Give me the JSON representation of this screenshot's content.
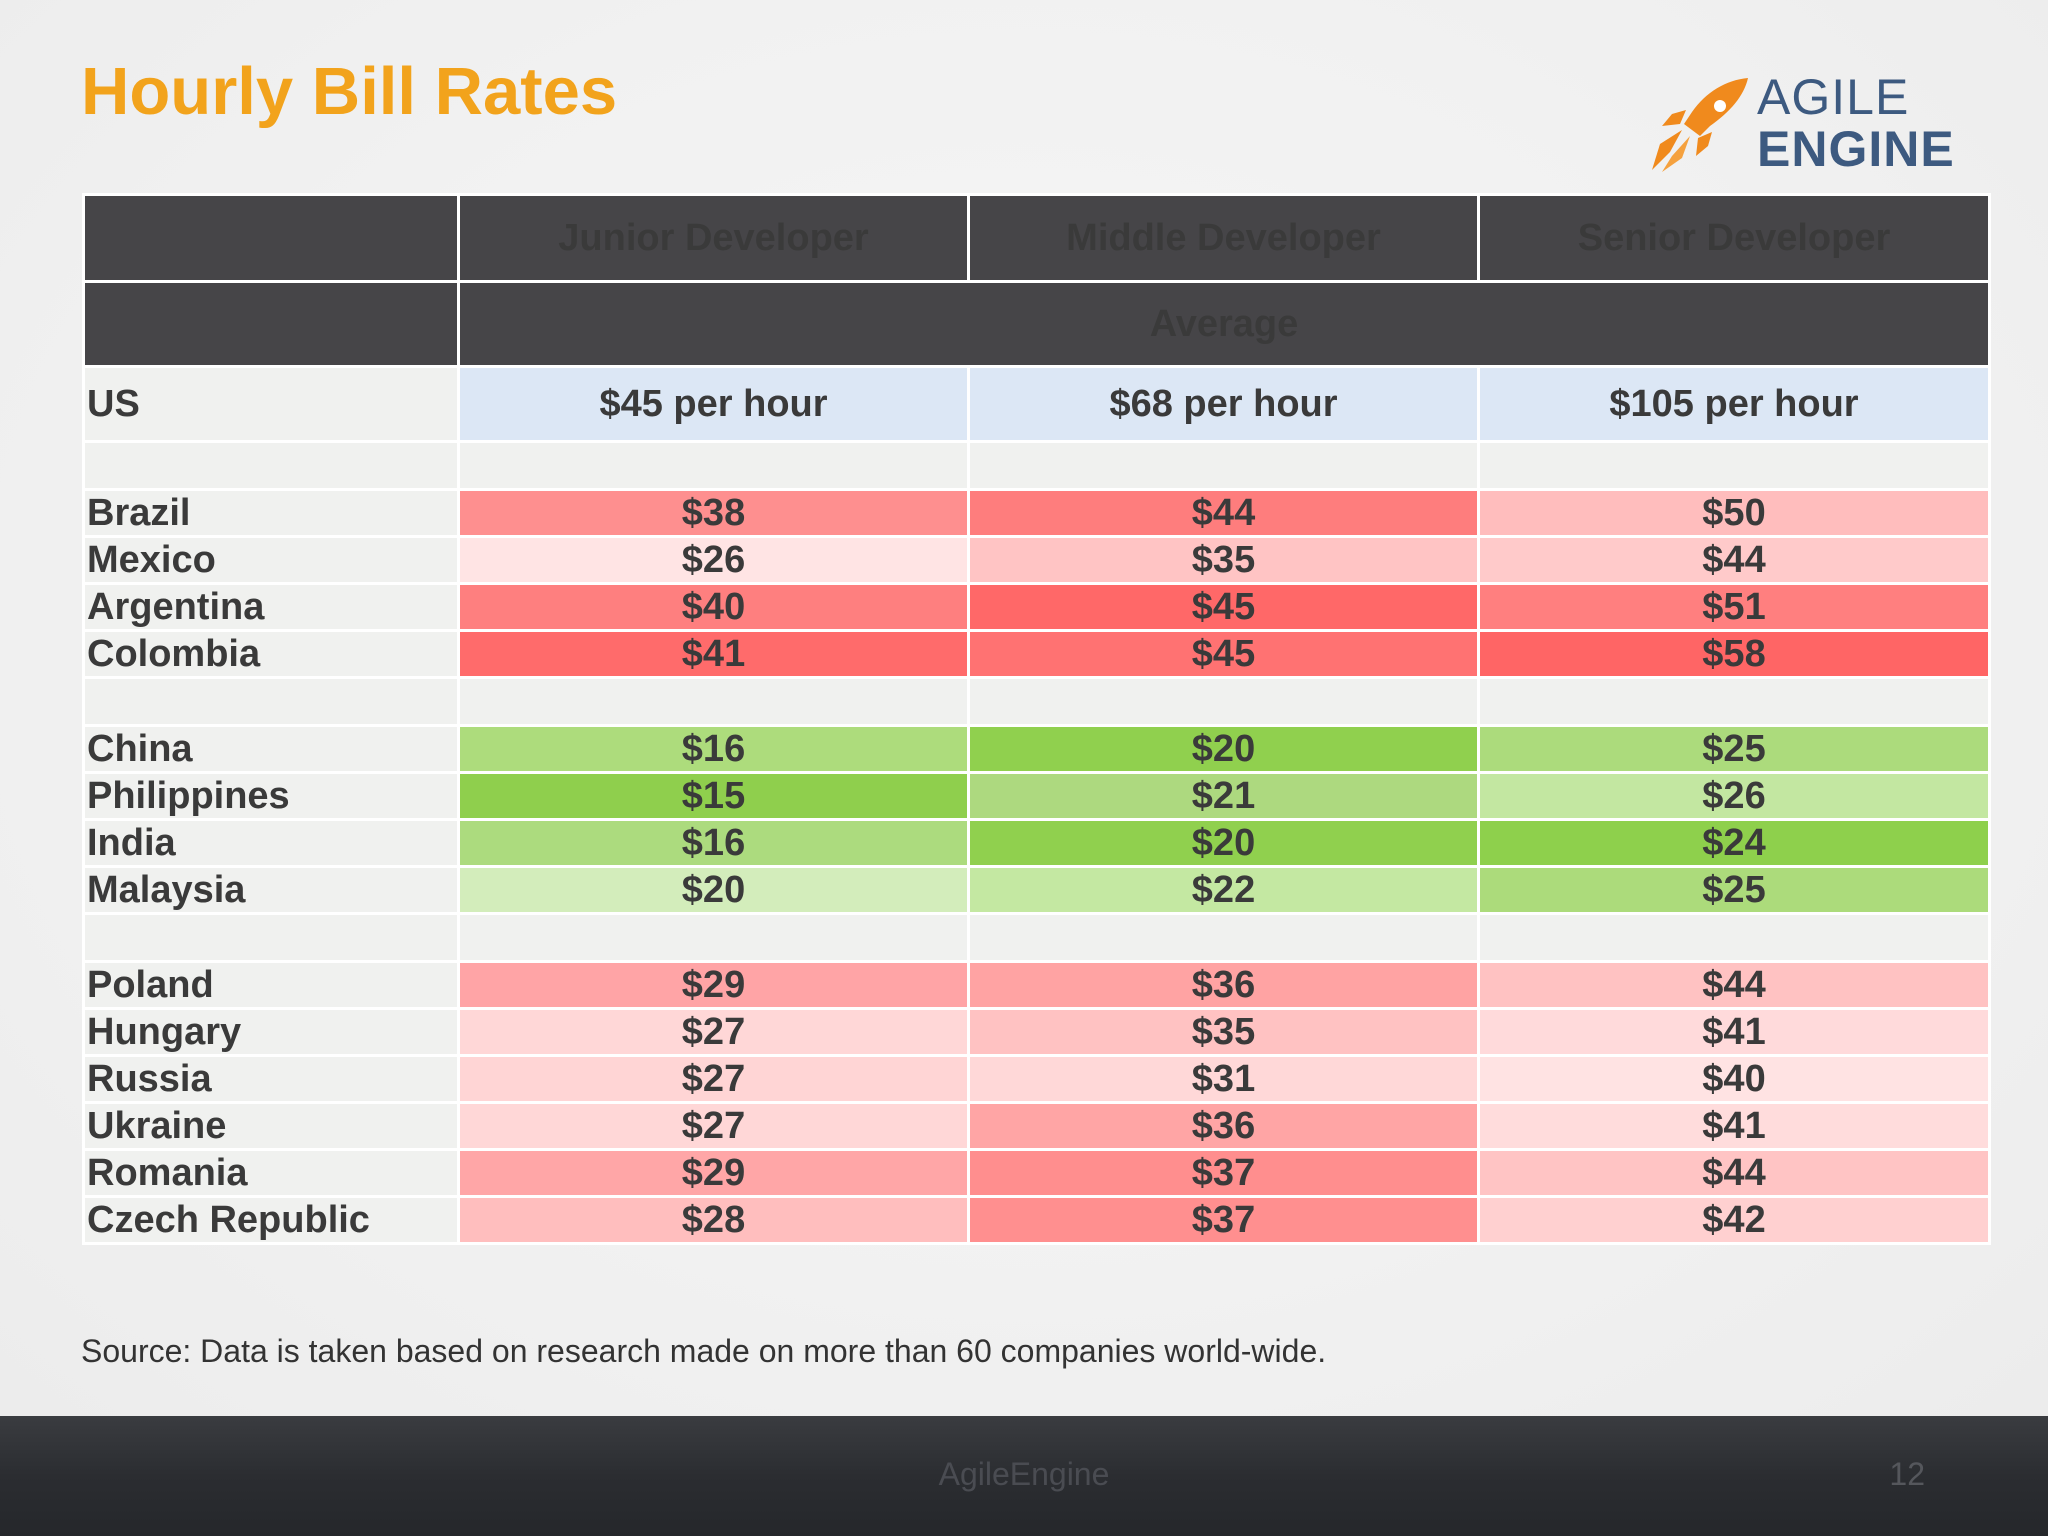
{
  "title": "Hourly Bill Rates",
  "logo": {
    "line1": "AGILE",
    "line2": "ENGINE",
    "rocket_color": "#f08a1d",
    "text_color": "#3d5a80"
  },
  "table": {
    "headers": [
      "",
      "Junior Developer",
      "Middle Developer",
      "Senior Developer"
    ],
    "average_label": "Average",
    "us": {
      "country": "US",
      "values": [
        "$45 per hour",
        "$68 per hour",
        "$105 per hour"
      ]
    },
    "groups": [
      {
        "name": "latin-america",
        "rows": [
          {
            "country": "Brazil",
            "values": [
              "$38",
              "$44",
              "$50"
            ],
            "colors": [
              "#fe8f8f",
              "#fe7d7d",
              "#ffbdbd"
            ]
          },
          {
            "country": "Mexico",
            "values": [
              "$26",
              "$35",
              "$44"
            ],
            "colors": [
              "#ffe4e4",
              "#ffc4c4",
              "#ffcaca"
            ]
          },
          {
            "country": "Argentina",
            "values": [
              "$40",
              "$45",
              "$51"
            ],
            "colors": [
              "#fe7f7f",
              "#ff6868",
              "#ff7f7f"
            ]
          },
          {
            "country": "Colombia",
            "values": [
              "$41",
              "$45",
              "$58"
            ],
            "colors": [
              "#ff6b6b",
              "#ff7272",
              "#ff6565"
            ]
          }
        ]
      },
      {
        "name": "asia",
        "rows": [
          {
            "country": "China",
            "values": [
              "$16",
              "$20",
              "$25"
            ],
            "colors": [
              "#addc7c",
              "#90d04e",
              "#acdb7c"
            ]
          },
          {
            "country": "Philippines",
            "values": [
              "$15",
              "$21",
              "$26"
            ],
            "colors": [
              "#8fcf4d",
              "#add97f",
              "#c3e7a1"
            ]
          },
          {
            "country": "India",
            "values": [
              "$16",
              "$20",
              "$24"
            ],
            "colors": [
              "#acdb7e",
              "#90d04e",
              "#8ed04c"
            ]
          },
          {
            "country": "Malaysia",
            "values": [
              "$20",
              "$22",
              "$25"
            ],
            "colors": [
              "#d3edbb",
              "#c4e8a2",
              "#acdb7b"
            ]
          }
        ]
      },
      {
        "name": "eastern-europe",
        "rows": [
          {
            "country": "Poland",
            "values": [
              "$29",
              "$36",
              "$44"
            ],
            "colors": [
              "#ffa4a6",
              "#ffa3a3",
              "#ffc2c2"
            ]
          },
          {
            "country": "Hungary",
            "values": [
              "$27",
              "$35",
              "$41"
            ],
            "colors": [
              "#ffd7d7",
              "#ffc2c2",
              "#ffdadb"
            ]
          },
          {
            "country": "Russia",
            "values": [
              "$27",
              "$31",
              "$40"
            ],
            "colors": [
              "#ffd5d5",
              "#ffd8d8",
              "#ffe3e3"
            ]
          },
          {
            "country": "Ukraine",
            "values": [
              "$27",
              "$36",
              "$41"
            ],
            "colors": [
              "#ffd7d7",
              "#ffa5a5",
              "#ffdcdc"
            ]
          },
          {
            "country": "Romania",
            "values": [
              "$29",
              "$37",
              "$44"
            ],
            "colors": [
              "#ffa6a7",
              "#ff8e8e",
              "#ffc4c4"
            ]
          },
          {
            "country": "Czech Republic",
            "values": [
              "$28",
              "$37",
              "$42"
            ],
            "colors": [
              "#ffbebe",
              "#ff8f8f",
              "#ffd0d0"
            ]
          }
        ]
      }
    ]
  },
  "source": "Source: Data is taken based on research made on more than 60 companies world-wide.",
  "footer": {
    "brand": "AgileEngine",
    "page_number": "12"
  }
}
